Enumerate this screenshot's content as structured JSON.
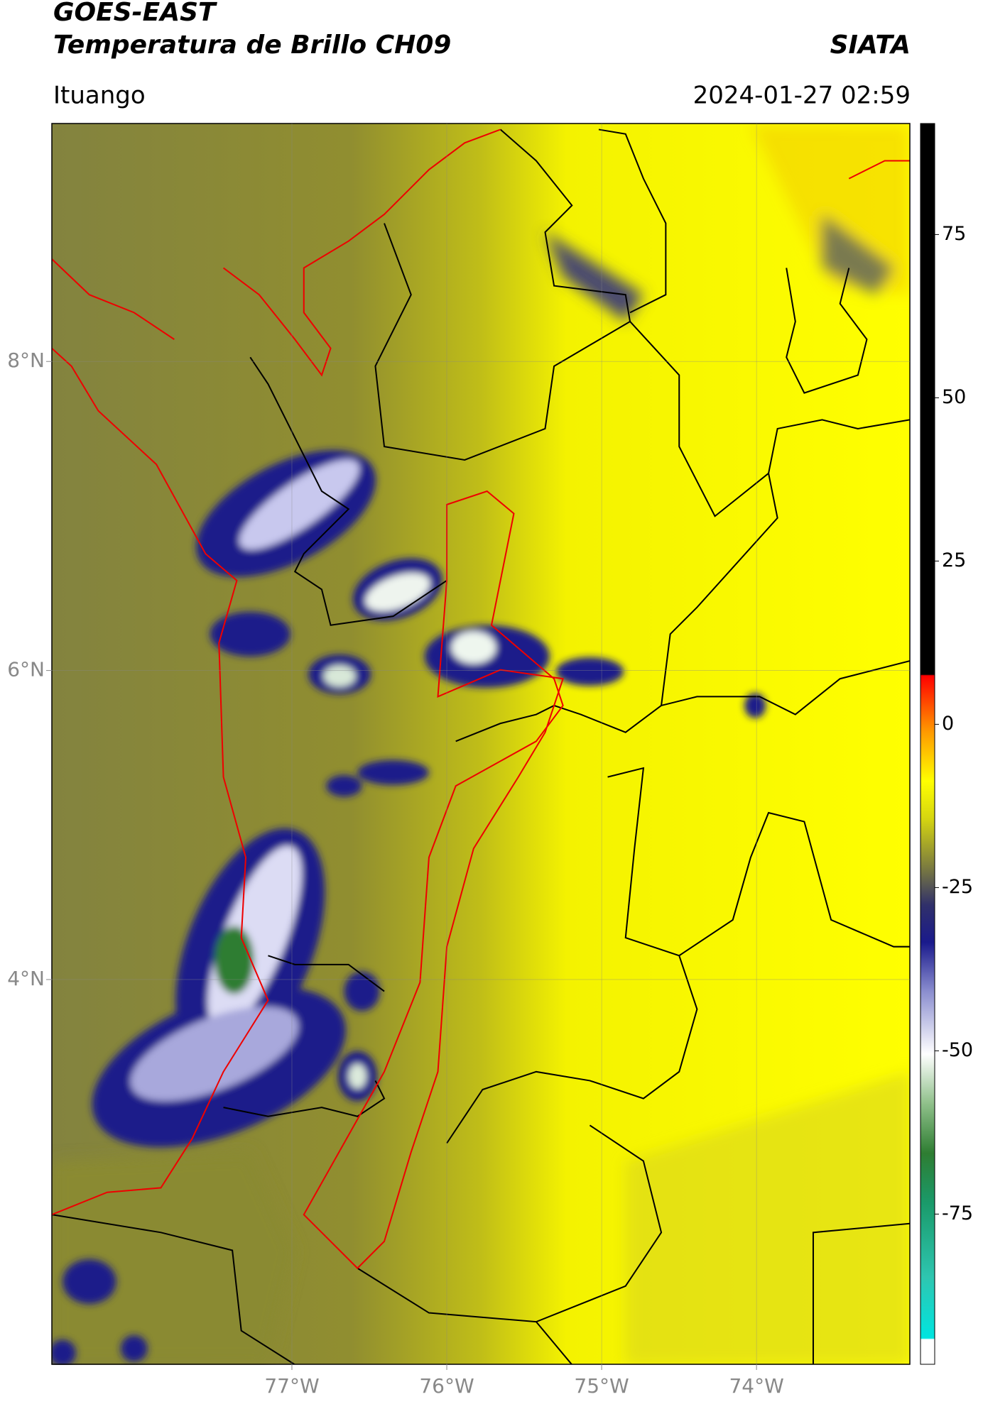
{
  "header": {
    "title": "GOES-EAST",
    "subtitle": "Temperatura de Brillo CH09",
    "brand": "SIATA",
    "location": "Ituango",
    "datetime": "2024-01-27 02:59"
  },
  "map": {
    "xlim": [
      -78.55,
      -73.01
    ],
    "ylim": [
      1.51,
      9.54
    ],
    "xticks": [
      {
        "value": -77,
        "label": "77°W"
      },
      {
        "value": -76,
        "label": "76°W"
      },
      {
        "value": -75,
        "label": "75°W"
      },
      {
        "value": -74,
        "label": "74°W"
      }
    ],
    "yticks": [
      {
        "value": 8,
        "label": "8°N"
      },
      {
        "value": 6,
        "label": "6°N"
      },
      {
        "value": 4,
        "label": "4°N"
      }
    ],
    "grid": true
  },
  "colorbar": {
    "lim": [
      -98,
      92
    ],
    "ticks": [
      75,
      50,
      25,
      0,
      -25,
      -50,
      -75
    ]
  }
}
